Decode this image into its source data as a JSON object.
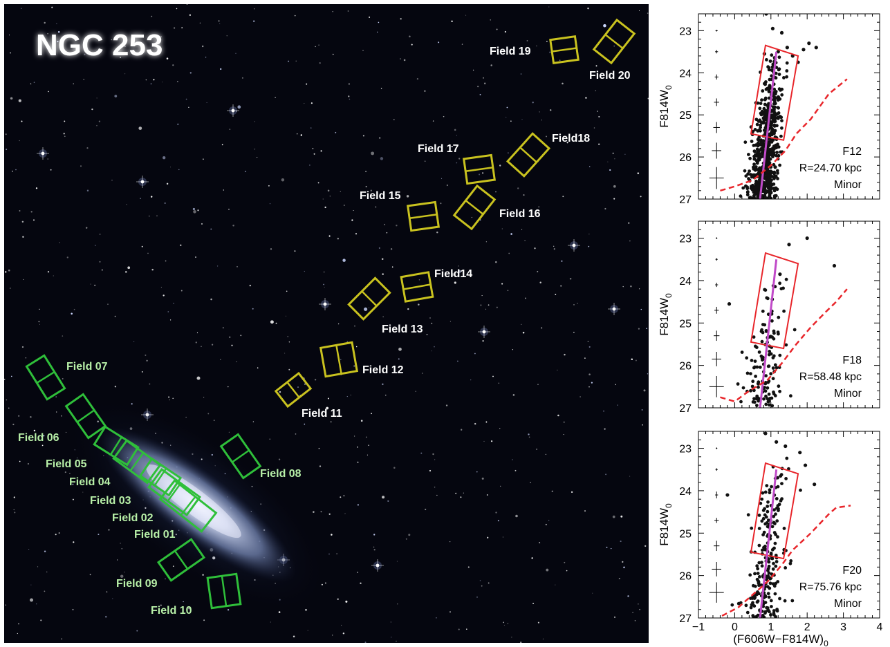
{
  "image_title": "NGC 253",
  "colors": {
    "sky": "#05060f",
    "inner_field": "#2fbf3a",
    "outer_field": "#c9c21f",
    "inner_label": "#b8f0a8",
    "outer_label": "#ffffff",
    "box": "#e8262b",
    "ridge": "#c04ac8",
    "limit": "#e8262b",
    "points": "#111111"
  },
  "fields": [
    {
      "id": "field-01",
      "label": "Field 01",
      "group": "inner"
    },
    {
      "id": "field-02",
      "label": "Field 02",
      "group": "inner"
    },
    {
      "id": "field-03",
      "label": "Field 03",
      "group": "inner"
    },
    {
      "id": "field-04",
      "label": "Field 04",
      "group": "inner"
    },
    {
      "id": "field-05",
      "label": "Field  05",
      "group": "inner"
    },
    {
      "id": "field-06",
      "label": "Field 06",
      "group": "inner"
    },
    {
      "id": "field-07",
      "label": "Field 07",
      "group": "inner"
    },
    {
      "id": "field-08",
      "label": "Field 08",
      "group": "inner"
    },
    {
      "id": "field-09",
      "label": "Field 09",
      "group": "inner"
    },
    {
      "id": "field-10",
      "label": "Field 10",
      "group": "inner"
    },
    {
      "id": "field-11",
      "label": "Field 11",
      "group": "outer"
    },
    {
      "id": "field-12",
      "label": "Field 12",
      "group": "outer"
    },
    {
      "id": "field-13",
      "label": "Field 13",
      "group": "outer"
    },
    {
      "id": "field-14",
      "label": "Field14",
      "group": "outer"
    },
    {
      "id": "field-15",
      "label": "Field 15",
      "group": "outer"
    },
    {
      "id": "field-16",
      "label": "Field 16",
      "group": "outer"
    },
    {
      "id": "field-17",
      "label": "Field 17",
      "group": "outer"
    },
    {
      "id": "field-18",
      "label": "Field18",
      "group": "outer"
    },
    {
      "id": "field-19",
      "label": "Field 19",
      "group": "outer"
    },
    {
      "id": "field-20",
      "label": "Field 20",
      "group": "outer"
    }
  ],
  "chart_data": [
    {
      "type": "scatter",
      "panel_label": "F12",
      "radius": "R=24.70 kpc",
      "axis_name": "Minor",
      "ylabel": "F814W",
      "ylabel_sub": "0",
      "xlabel": "",
      "xlim": [
        -1,
        4
      ],
      "ylim": [
        27,
        22.6
      ],
      "y_ticks": [
        "23",
        "24",
        "25",
        "26",
        "27"
      ],
      "x_ticks": [],
      "x_minor": true,
      "box": [
        [
          0.45,
          25.45
        ],
        [
          0.85,
          23.35
        ],
        [
          1.75,
          23.6
        ],
        [
          1.35,
          25.6
        ]
      ],
      "ridge": [
        [
          0.7,
          27
        ],
        [
          1.15,
          23.5
        ]
      ],
      "limit_line": [
        [
          -0.4,
          26.8
        ],
        [
          0.0,
          26.7
        ],
        [
          0.5,
          26.55
        ],
        [
          1.0,
          26.2
        ],
        [
          1.4,
          25.85
        ],
        [
          1.7,
          25.45
        ],
        [
          2.1,
          25.1
        ],
        [
          2.6,
          24.5
        ],
        [
          3.1,
          24.15
        ]
      ],
      "error_bars": [
        {
          "mag": 23.0,
          "ex": 0.03,
          "ey": 0.02
        },
        {
          "mag": 23.5,
          "ex": 0.04,
          "ey": 0.04
        },
        {
          "mag": 24.1,
          "ex": 0.05,
          "ey": 0.06
        },
        {
          "mag": 24.7,
          "ex": 0.07,
          "ey": 0.09
        },
        {
          "mag": 25.3,
          "ex": 0.09,
          "ey": 0.13
        },
        {
          "mag": 25.85,
          "ex": 0.13,
          "ey": 0.19
        },
        {
          "mag": 26.5,
          "ex": 0.2,
          "ey": 0.26
        }
      ],
      "points": [
        [
          0.87,
          22.6
        ],
        [
          1.05,
          22.95
        ],
        [
          1.3,
          23.05
        ],
        [
          2.05,
          23.3
        ],
        [
          1.9,
          23.45
        ],
        [
          2.25,
          23.4
        ],
        [
          0.82,
          23.55
        ],
        [
          1.2,
          23.5
        ],
        [
          1.6,
          23.6
        ],
        [
          1.75,
          23.75
        ],
        [
          1.45,
          23.4
        ]
      ],
      "cloud": {
        "n": 700,
        "mag_top": 23.5,
        "mag_bottom": 27.0,
        "spread_top": 0.28,
        "spread_bottom": 0.38,
        "seed": 12
      }
    },
    {
      "type": "scatter",
      "panel_label": "F18",
      "radius": "R=58.48 kpc",
      "axis_name": "Minor",
      "ylabel": "F814W",
      "ylabel_sub": "0",
      "xlabel": "",
      "xlim": [
        -1,
        4
      ],
      "ylim": [
        27,
        22.6
      ],
      "y_ticks": [
        "23",
        "24",
        "25",
        "26",
        "27"
      ],
      "x_ticks": [],
      "x_minor": false,
      "box": [
        [
          0.45,
          25.45
        ],
        [
          0.85,
          23.35
        ],
        [
          1.75,
          23.6
        ],
        [
          1.35,
          25.6
        ]
      ],
      "ridge": [
        [
          0.7,
          27
        ],
        [
          1.15,
          23.5
        ]
      ],
      "limit_line": [
        [
          -0.4,
          26.75
        ],
        [
          0.0,
          26.85
        ],
        [
          0.4,
          26.6
        ],
        [
          0.9,
          26.35
        ],
        [
          1.3,
          25.95
        ],
        [
          1.7,
          25.5
        ],
        [
          2.1,
          25.1
        ],
        [
          2.5,
          24.75
        ],
        [
          2.8,
          24.5
        ],
        [
          3.1,
          24.2
        ]
      ],
      "error_bars": [
        {
          "mag": 23.0,
          "ex": 0.02,
          "ey": 0.02
        },
        {
          "mag": 23.5,
          "ex": 0.03,
          "ey": 0.03
        },
        {
          "mag": 24.1,
          "ex": 0.04,
          "ey": 0.05
        },
        {
          "mag": 24.7,
          "ex": 0.06,
          "ey": 0.08
        },
        {
          "mag": 25.3,
          "ex": 0.08,
          "ey": 0.12
        },
        {
          "mag": 25.85,
          "ex": 0.13,
          "ey": 0.17
        },
        {
          "mag": 26.5,
          "ex": 0.2,
          "ey": 0.25
        }
      ],
      "points": [
        [
          1.5,
          23.15
        ],
        [
          2.0,
          23.0
        ],
        [
          2.75,
          23.65
        ],
        [
          -0.15,
          24.55
        ],
        [
          1.25,
          23.85
        ]
      ],
      "cloud": {
        "n": 130,
        "mag_top": 23.6,
        "mag_bottom": 27.0,
        "spread_top": 0.4,
        "spread_bottom": 0.5,
        "seed": 18
      }
    },
    {
      "type": "scatter",
      "panel_label": "F20",
      "radius": "R=75.76 kpc",
      "axis_name": "Minor",
      "ylabel": "F814W",
      "ylabel_sub": "0",
      "xlabel": "(F606W−F814W)",
      "xlabel_sub": "0",
      "xlim": [
        -1,
        4
      ],
      "ylim": [
        27,
        22.6
      ],
      "y_ticks": [
        "23",
        "24",
        "25",
        "26",
        "27"
      ],
      "x_ticks": [
        "−1",
        "0",
        "1",
        "2",
        "3",
        "4"
      ],
      "x_minor": false,
      "box": [
        [
          0.45,
          25.45
        ],
        [
          0.85,
          23.35
        ],
        [
          1.75,
          23.6
        ],
        [
          1.35,
          25.6
        ]
      ],
      "ridge": [
        [
          0.7,
          27
        ],
        [
          1.15,
          23.5
        ]
      ],
      "limit_line": [
        [
          -0.35,
          26.95
        ],
        [
          0.1,
          26.75
        ],
        [
          0.5,
          26.45
        ],
        [
          0.9,
          26.15
        ],
        [
          1.3,
          25.75
        ],
        [
          1.6,
          25.4
        ],
        [
          2.1,
          25.0
        ],
        [
          2.6,
          24.55
        ],
        [
          2.8,
          24.4
        ],
        [
          3.2,
          24.35
        ]
      ],
      "error_bars": [
        {
          "mag": 23.0,
          "ex": 0.02,
          "ey": 0.02
        },
        {
          "mag": 23.5,
          "ex": 0.03,
          "ey": 0.03
        },
        {
          "mag": 24.1,
          "ex": 0.04,
          "ey": 0.08
        },
        {
          "mag": 24.7,
          "ex": 0.06,
          "ey": 0.06
        },
        {
          "mag": 25.3,
          "ex": 0.08,
          "ey": 0.12
        },
        {
          "mag": 25.85,
          "ex": 0.13,
          "ey": 0.17
        },
        {
          "mag": 26.4,
          "ex": 0.2,
          "ey": 0.24
        }
      ],
      "points": [
        [
          0.85,
          22.65
        ],
        [
          1.15,
          22.85
        ],
        [
          1.8,
          23.1
        ],
        [
          1.95,
          23.4
        ],
        [
          2.2,
          23.85
        ],
        [
          -0.2,
          24.1
        ],
        [
          1.4,
          22.95
        ]
      ],
      "cloud": {
        "n": 220,
        "mag_top": 23.2,
        "mag_bottom": 27.0,
        "spread_top": 0.35,
        "spread_bottom": 0.45,
        "seed": 20
      }
    }
  ]
}
